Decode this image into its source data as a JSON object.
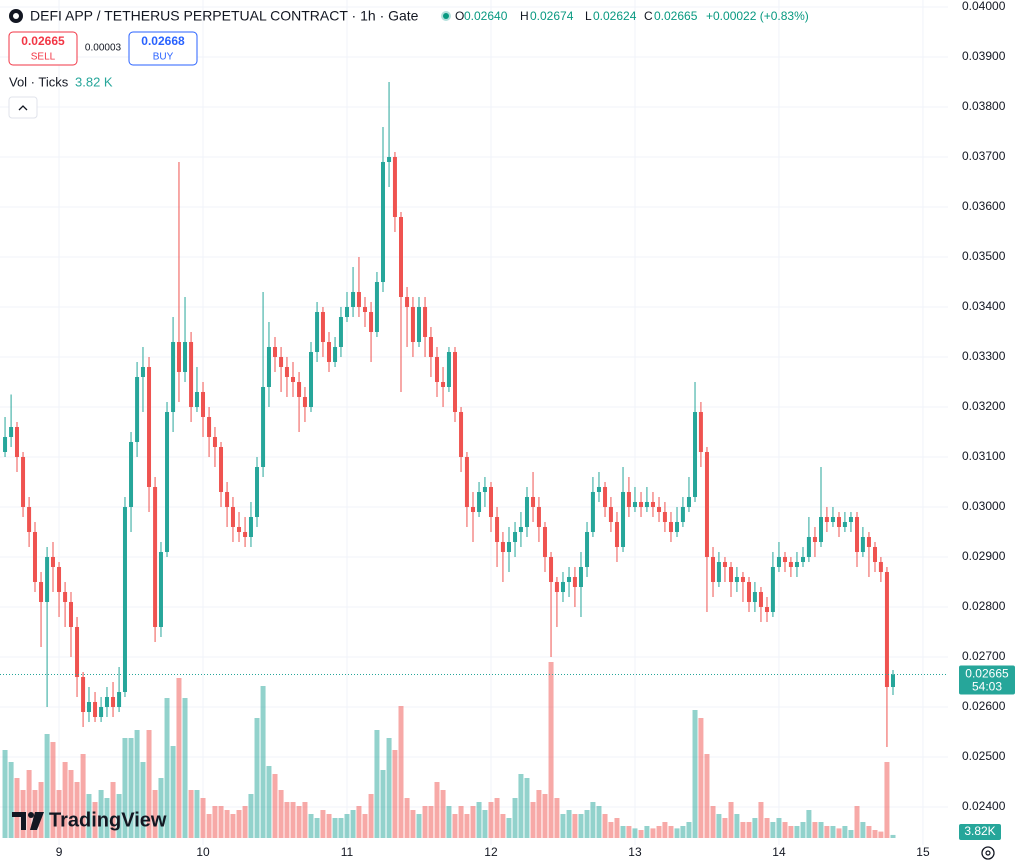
{
  "header": {
    "symbol_title": "DEFI APP / TETHERUS PERPETUAL CONTRACT · 1h · Gate",
    "ohlc_keys": [
      "O",
      "H",
      "L",
      "C"
    ],
    "ohlc_values": [
      "0.02640",
      "0.02674",
      "0.02624",
      "0.02665"
    ],
    "change": "+0.00022 (+0.83%)",
    "sell_price": "0.02665",
    "sell": "SELL",
    "spread": "0.00003",
    "buy_price": "0.02668",
    "buy": "BUY",
    "volume_title": "Vol · Ticks",
    "volume_value": "3.82 K"
  },
  "price_scale": {
    "last_price": "0.02665",
    "countdown": "54:03",
    "volume_badge": "3.82K"
  },
  "logo": "TradingView",
  "chart_data": {
    "type": "candlestick",
    "x": [
      8.625,
      8.667,
      8.708,
      8.75,
      8.792,
      8.833,
      8.875,
      8.917,
      8.958,
      9,
      9.042,
      9.083,
      9.125,
      9.167,
      9.208,
      9.25,
      9.292,
      9.333,
      9.375,
      9.417,
      9.458,
      9.5,
      9.542,
      9.583,
      9.625,
      9.667,
      9.708,
      9.75,
      9.792,
      9.833,
      9.875,
      9.917,
      9.958,
      10,
      10.042,
      10.083,
      10.125,
      10.167,
      10.208,
      10.25,
      10.292,
      10.333,
      10.375,
      10.417,
      10.458,
      10.5,
      10.542,
      10.583,
      10.625,
      10.667,
      10.708,
      10.75,
      10.792,
      10.833,
      10.875,
      10.917,
      10.958,
      11,
      11.042,
      11.083,
      11.125,
      11.167,
      11.208,
      11.25,
      11.292,
      11.333,
      11.375,
      11.417,
      11.458,
      11.5,
      11.542,
      11.583,
      11.625,
      11.667,
      11.708,
      11.75,
      11.792,
      11.833,
      11.875,
      11.917,
      11.958,
      12,
      12.042,
      12.083,
      12.125,
      12.167,
      12.208,
      12.25,
      12.292,
      12.333,
      12.375,
      12.417,
      12.458,
      12.5,
      12.542,
      12.583,
      12.625,
      12.667,
      12.708,
      12.75,
      12.792,
      12.833,
      12.875,
      12.917,
      12.958,
      13,
      13.042,
      13.083,
      13.125,
      13.167,
      13.208,
      13.25,
      13.292,
      13.333,
      13.375,
      13.417,
      13.458,
      13.5,
      13.542,
      13.583,
      13.625,
      13.667,
      13.708,
      13.75,
      13.792,
      13.833,
      13.875,
      13.917,
      13.958,
      14,
      14.042,
      14.083,
      14.125,
      14.167,
      14.208,
      14.25,
      14.292,
      14.333,
      14.375,
      14.417,
      14.458,
      14.5,
      14.542,
      14.583,
      14.625,
      14.667,
      14.708,
      14.75,
      14.792
    ],
    "open": [
      0.0311,
      0.0314,
      0.0316,
      0.031,
      0.03,
      0.0295,
      0.0285,
      0.0281,
      0.029,
      0.0288,
      0.0283,
      0.0281,
      0.0276,
      0.0266,
      0.0259,
      0.0261,
      0.0258,
      0.026,
      0.0262,
      0.026,
      0.0263,
      0.03,
      0.0313,
      0.0326,
      0.0328,
      0.0304,
      0.0276,
      0.0291,
      0.0319,
      0.0333,
      0.0327,
      0.0333,
      0.032,
      0.0323,
      0.0318,
      0.0314,
      0.0312,
      0.0303,
      0.03,
      0.0296,
      0.0295,
      0.0294,
      0.0298,
      0.0308,
      0.0324,
      0.0332,
      0.033,
      0.0328,
      0.0326,
      0.0325,
      0.0322,
      0.032,
      0.0331,
      0.0339,
      0.0333,
      0.0329,
      0.0332,
      0.0338,
      0.034,
      0.0343,
      0.034,
      0.0339,
      0.0335,
      0.0345,
      0.0369,
      0.037,
      0.0358,
      0.0342,
      0.034,
      0.0333,
      0.034,
      0.0334,
      0.033,
      0.0325,
      0.0324,
      0.0331,
      0.0319,
      0.031,
      0.03,
      0.0299,
      0.0303,
      0.0304,
      0.0298,
      0.0293,
      0.0291,
      0.0293,
      0.0295,
      0.0296,
      0.0302,
      0.03,
      0.0296,
      0.029,
      0.0285,
      0.0283,
      0.0285,
      0.0286,
      0.0284,
      0.0288,
      0.0295,
      0.0303,
      0.0304,
      0.03,
      0.0297,
      0.0292,
      0.0303,
      0.03,
      0.0301,
      0.03,
      0.0301,
      0.03,
      0.0299,
      0.0297,
      0.0295,
      0.0297,
      0.03,
      0.0302,
      0.0319,
      0.0311,
      0.029,
      0.0285,
      0.0289,
      0.0288,
      0.0285,
      0.0286,
      0.0285,
      0.0281,
      0.0283,
      0.028,
      0.0279,
      0.0288,
      0.029,
      0.0289,
      0.0288,
      0.0289,
      0.029,
      0.0294,
      0.0293,
      0.0298,
      0.0297,
      0.0298,
      0.0296,
      0.0297,
      0.0298,
      0.0291,
      0.0294,
      0.0292,
      0.0289,
      0.0287,
      0.0264
    ],
    "high": [
      0.0318,
      0.03225,
      0.0317,
      0.0311,
      0.0302,
      0.0297,
      0.0287,
      0.0292,
      0.0293,
      0.0289,
      0.0285,
      0.0283,
      0.0278,
      0.0267,
      0.0264,
      0.0263,
      0.0262,
      0.0264,
      0.0265,
      0.0268,
      0.0302,
      0.0315,
      0.0329,
      0.0332,
      0.033,
      0.0306,
      0.0293,
      0.0321,
      0.0338,
      0.0369,
      0.0342,
      0.0335,
      0.0328,
      0.0325,
      0.032,
      0.0316,
      0.0313,
      0.0305,
      0.0302,
      0.0299,
      0.0298,
      0.0301,
      0.031,
      0.0343,
      0.0337,
      0.0334,
      0.0332,
      0.033,
      0.0329,
      0.0327,
      0.0324,
      0.0333,
      0.0341,
      0.034,
      0.0335,
      0.0334,
      0.034,
      0.0343,
      0.0348,
      0.035,
      0.0342,
      0.0341,
      0.0347,
      0.0376,
      0.0385,
      0.0371,
      0.0359,
      0.0344,
      0.0342,
      0.0342,
      0.0342,
      0.0336,
      0.0332,
      0.0328,
      0.0332,
      0.0332,
      0.032,
      0.0311,
      0.0303,
      0.0305,
      0.0306,
      0.0305,
      0.03,
      0.0295,
      0.0296,
      0.0297,
      0.0299,
      0.0304,
      0.0307,
      0.0302,
      0.0297,
      0.0291,
      0.0286,
      0.0287,
      0.0288,
      0.0288,
      0.0291,
      0.0297,
      0.0306,
      0.0307,
      0.0305,
      0.0302,
      0.0299,
      0.0308,
      0.0306,
      0.0304,
      0.0303,
      0.0304,
      0.0303,
      0.0302,
      0.0301,
      0.0299,
      0.03,
      0.0302,
      0.0306,
      0.0325,
      0.0321,
      0.0312,
      0.0292,
      0.0291,
      0.029,
      0.0289,
      0.0288,
      0.0287,
      0.0286,
      0.0285,
      0.0284,
      0.0282,
      0.0291,
      0.0293,
      0.0291,
      0.029,
      0.0291,
      0.0292,
      0.0298,
      0.0296,
      0.0308,
      0.03,
      0.03,
      0.0299,
      0.0299,
      0.0299,
      0.0299,
      0.0296,
      0.0295,
      0.0293,
      0.029,
      0.0288,
      0.02674
    ],
    "low": [
      0.031,
      0.0312,
      0.0307,
      0.0298,
      0.0292,
      0.0283,
      0.0272,
      0.026,
      0.0283,
      0.0278,
      0.0276,
      0.027,
      0.0262,
      0.0256,
      0.0257,
      0.0257,
      0.0257,
      0.0258,
      0.0258,
      0.0259,
      0.0262,
      0.0295,
      0.031,
      0.0319,
      0.0299,
      0.0273,
      0.0274,
      0.029,
      0.0315,
      0.0321,
      0.0325,
      0.0317,
      0.0319,
      0.0314,
      0.031,
      0.0308,
      0.03,
      0.0296,
      0.0293,
      0.0293,
      0.0292,
      0.0292,
      0.0296,
      0.0306,
      0.032,
      0.0327,
      0.0323,
      0.0322,
      0.0322,
      0.0315,
      0.0317,
      0.0319,
      0.0329,
      0.033,
      0.0327,
      0.0328,
      0.033,
      0.0337,
      0.0338,
      0.0338,
      0.0336,
      0.0329,
      0.0334,
      0.0343,
      0.0364,
      0.0355,
      0.0323,
      0.0332,
      0.033,
      0.0332,
      0.033,
      0.0326,
      0.0322,
      0.032,
      0.0323,
      0.0317,
      0.0307,
      0.0296,
      0.0293,
      0.0298,
      0.03,
      0.0295,
      0.0288,
      0.0285,
      0.0287,
      0.029,
      0.0292,
      0.0294,
      0.0297,
      0.0293,
      0.0287,
      0.027,
      0.0276,
      0.0281,
      0.0282,
      0.028,
      0.0278,
      0.0286,
      0.0294,
      0.0301,
      0.0298,
      0.0295,
      0.0289,
      0.0291,
      0.0298,
      0.0299,
      0.0298,
      0.0299,
      0.0298,
      0.0297,
      0.0295,
      0.0293,
      0.0294,
      0.0296,
      0.0299,
      0.0301,
      0.0308,
      0.0279,
      0.0282,
      0.0284,
      0.0285,
      0.0282,
      0.0283,
      0.0281,
      0.0279,
      0.0279,
      0.0277,
      0.0277,
      0.0278,
      0.0287,
      0.0287,
      0.0286,
      0.0286,
      0.0288,
      0.0289,
      0.029,
      0.0292,
      0.0295,
      0.0296,
      0.0294,
      0.0295,
      0.0295,
      0.0288,
      0.029,
      0.0286,
      0.0287,
      0.0285,
      0.0252,
      0.02624
    ],
    "close": [
      0.0314,
      0.0316,
      0.031,
      0.03,
      0.0295,
      0.0285,
      0.0281,
      0.029,
      0.0288,
      0.0283,
      0.0281,
      0.0276,
      0.0266,
      0.0259,
      0.0261,
      0.0258,
      0.026,
      0.0262,
      0.026,
      0.0263,
      0.03,
      0.0313,
      0.0326,
      0.0328,
      0.0304,
      0.0276,
      0.0291,
      0.0319,
      0.0333,
      0.0327,
      0.0333,
      0.032,
      0.0323,
      0.0318,
      0.0314,
      0.0312,
      0.0303,
      0.03,
      0.0296,
      0.0295,
      0.0294,
      0.0298,
      0.0308,
      0.0324,
      0.0332,
      0.033,
      0.0328,
      0.0326,
      0.0325,
      0.0322,
      0.032,
      0.0331,
      0.0339,
      0.0333,
      0.0329,
      0.0332,
      0.0338,
      0.034,
      0.0343,
      0.034,
      0.0339,
      0.0335,
      0.0345,
      0.0369,
      0.037,
      0.0358,
      0.0342,
      0.034,
      0.0333,
      0.034,
      0.0334,
      0.033,
      0.0325,
      0.0324,
      0.0331,
      0.0319,
      0.031,
      0.03,
      0.0299,
      0.0303,
      0.0304,
      0.0298,
      0.0293,
      0.0291,
      0.0293,
      0.0295,
      0.0296,
      0.0302,
      0.03,
      0.0296,
      0.029,
      0.0285,
      0.0283,
      0.0285,
      0.0286,
      0.0284,
      0.0288,
      0.0295,
      0.0303,
      0.0304,
      0.03,
      0.0297,
      0.0292,
      0.0303,
      0.03,
      0.0301,
      0.03,
      0.0301,
      0.03,
      0.0299,
      0.0297,
      0.0295,
      0.0297,
      0.03,
      0.0302,
      0.0319,
      0.0311,
      0.029,
      0.0285,
      0.0289,
      0.0288,
      0.0285,
      0.0286,
      0.0285,
      0.0281,
      0.0283,
      0.028,
      0.0279,
      0.0288,
      0.029,
      0.0289,
      0.0288,
      0.0289,
      0.029,
      0.0294,
      0.0293,
      0.0298,
      0.0297,
      0.0298,
      0.0296,
      0.0297,
      0.0298,
      0.0291,
      0.0294,
      0.0292,
      0.0289,
      0.0287,
      0.0264,
      0.02665
    ],
    "volume": [
      110,
      95,
      75,
      60,
      85,
      60,
      70,
      130,
      120,
      60,
      95,
      85,
      70,
      105,
      55,
      45,
      60,
      50,
      70,
      55,
      125,
      125,
      135,
      95,
      135,
      60,
      75,
      175,
      115,
      200,
      175,
      60,
      60,
      50,
      30,
      40,
      40,
      35,
      30,
      35,
      40,
      55,
      150,
      190,
      90,
      80,
      60,
      45,
      45,
      40,
      45,
      30,
      25,
      35,
      30,
      25,
      25,
      30,
      35,
      40,
      30,
      55,
      135,
      85,
      125,
      110,
      165,
      50,
      35,
      30,
      40,
      40,
      70,
      60,
      40,
      30,
      40,
      30,
      40,
      45,
      35,
      45,
      50,
      30,
      25,
      50,
      80,
      75,
      45,
      60,
      55,
      220,
      50,
      30,
      35,
      30,
      30,
      35,
      45,
      40,
      30,
      20,
      25,
      15,
      15,
      12,
      10,
      15,
      12,
      15,
      20,
      15,
      12,
      15,
      20,
      160,
      150,
      105,
      40,
      30,
      25,
      45,
      30,
      20,
      20,
      25,
      45,
      25,
      20,
      25,
      20,
      15,
      15,
      20,
      35,
      20,
      20,
      15,
      15,
      12,
      15,
      10,
      40,
      20,
      15,
      10,
      8,
      95,
      3.82
    ],
    "up_color": "#26a69a",
    "down_color": "#ef5350",
    "xlim": [
      8.59,
      15.174
    ],
    "xticks": [
      9,
      10,
      11,
      12,
      13,
      14,
      15
    ],
    "ylim": [
      0.02324,
      0.04014
    ],
    "yticks": [
      {
        "value": 0.024,
        "label": "0.02400"
      },
      {
        "value": 0.025,
        "label": "0.02500"
      },
      {
        "value": 0.026,
        "label": "0.02600"
      },
      {
        "value": 0.027,
        "label": "0.02700"
      },
      {
        "value": 0.028,
        "label": "0.02800"
      },
      {
        "value": 0.029,
        "label": "0.02900"
      },
      {
        "value": 0.03,
        "label": "0.03000"
      },
      {
        "value": 0.031,
        "label": "0.03100"
      },
      {
        "value": 0.032,
        "label": "0.03200"
      },
      {
        "value": 0.033,
        "label": "0.03300"
      },
      {
        "value": 0.034,
        "label": "0.03400"
      },
      {
        "value": 0.035,
        "label": "0.03500"
      },
      {
        "value": 0.036,
        "label": "0.03600"
      },
      {
        "value": 0.037,
        "label": "0.03700"
      },
      {
        "value": 0.038,
        "label": "0.03800"
      },
      {
        "value": 0.039,
        "label": "0.03900"
      },
      {
        "value": 0.04,
        "label": "0.04000"
      }
    ],
    "grid": true
  }
}
